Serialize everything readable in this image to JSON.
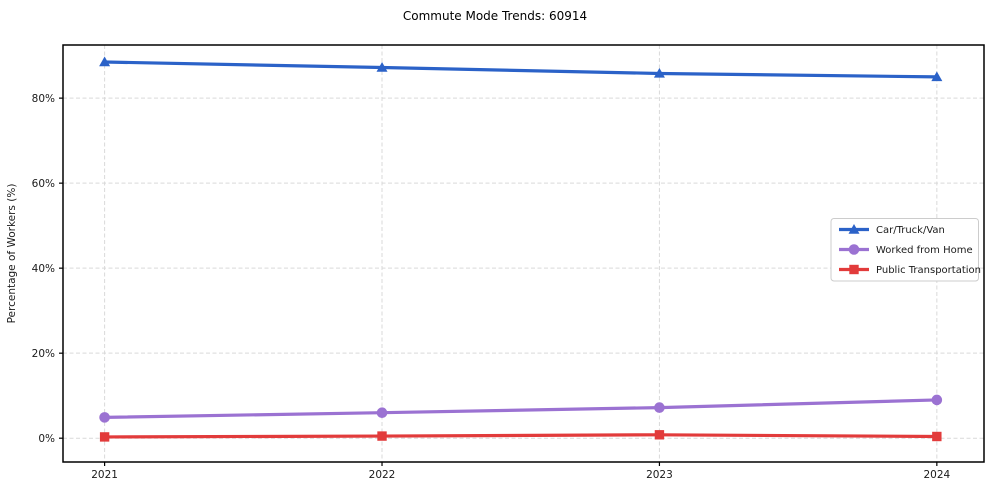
{
  "title": "Commute Mode Trends: 60914",
  "chart_data": {
    "type": "line",
    "title": "Commute Mode Trends: 60914",
    "xlabel": "",
    "ylabel": "Percentage of Workers (%)",
    "x": [
      2021,
      2022,
      2023,
      2024
    ],
    "xtick_labels": [
      "2021",
      "2022",
      "2023",
      "2024"
    ],
    "yticks": [
      0,
      20,
      40,
      60,
      80
    ],
    "ytick_labels": [
      "0%",
      "20%",
      "40%",
      "60%",
      "80%"
    ],
    "xlim": [
      2020.85,
      2024.17
    ],
    "ylim": [
      -5.6,
      92.5
    ],
    "grid": true,
    "grid_style": "dashed",
    "legend_position": "center right",
    "series": [
      {
        "name": "Car/Truck/Van",
        "values": [
          88.5,
          87.2,
          85.8,
          85.0
        ],
        "color": "#2b62c8",
        "marker": "triangle"
      },
      {
        "name": "Worked from Home",
        "values": [
          4.9,
          6.0,
          7.2,
          9.0
        ],
        "color": "#9b72d2",
        "marker": "circle"
      },
      {
        "name": "Public Transportation",
        "values": [
          0.3,
          0.5,
          0.8,
          0.4
        ],
        "color": "#e23b3b",
        "marker": "square"
      }
    ],
    "colors": {
      "grid": "#d9d9d9",
      "spine": "#000000",
      "tick_label": "#1a1a1a",
      "legend_border": "#cccccc",
      "legend_bg": "#ffffff"
    }
  }
}
